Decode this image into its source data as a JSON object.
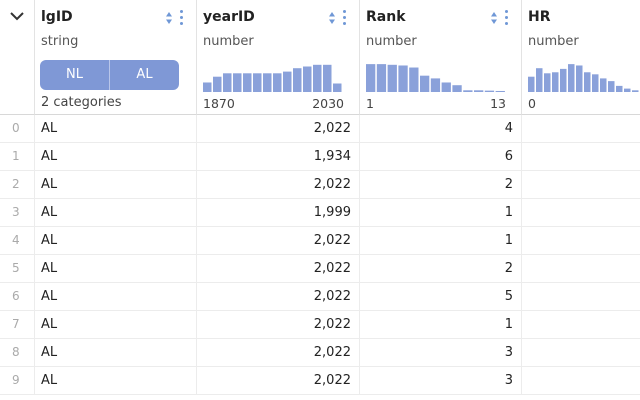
{
  "columns": [
    {
      "name": "lgID",
      "type": "string",
      "categories": [
        "NL",
        "AL"
      ],
      "categories_label": "2 categories"
    },
    {
      "name": "yearID",
      "type": "number",
      "range_min": "1870",
      "range_max": "2030",
      "histogram": [
        0.28,
        0.45,
        0.55,
        0.55,
        0.55,
        0.55,
        0.55,
        0.55,
        0.6,
        0.7,
        0.75,
        0.8,
        0.8,
        0.25
      ]
    },
    {
      "name": "Rank",
      "type": "number",
      "range_min": "1",
      "range_max": "13",
      "histogram": [
        0.82,
        0.82,
        0.8,
        0.78,
        0.72,
        0.48,
        0.4,
        0.28,
        0.2,
        0.05,
        0.05,
        0.04,
        0.03
      ]
    },
    {
      "name": "HR",
      "type": "number",
      "range_min": "0",
      "histogram": [
        0.45,
        0.7,
        0.55,
        0.58,
        0.68,
        0.82,
        0.78,
        0.58,
        0.52,
        0.4,
        0.32,
        0.18,
        0.1,
        0.05
      ]
    }
  ],
  "rows": [
    {
      "idx": "0",
      "lgID": "AL",
      "yearID": "2,022",
      "Rank": "4"
    },
    {
      "idx": "1",
      "lgID": "AL",
      "yearID": "1,934",
      "Rank": "6"
    },
    {
      "idx": "2",
      "lgID": "AL",
      "yearID": "2,022",
      "Rank": "2"
    },
    {
      "idx": "3",
      "lgID": "AL",
      "yearID": "1,999",
      "Rank": "1"
    },
    {
      "idx": "4",
      "lgID": "AL",
      "yearID": "2,022",
      "Rank": "1"
    },
    {
      "idx": "5",
      "lgID": "AL",
      "yearID": "2,022",
      "Rank": "2"
    },
    {
      "idx": "6",
      "lgID": "AL",
      "yearID": "2,022",
      "Rank": "5"
    },
    {
      "idx": "7",
      "lgID": "AL",
      "yearID": "2,022",
      "Rank": "1"
    },
    {
      "idx": "8",
      "lgID": "AL",
      "yearID": "2,022",
      "Rank": "3"
    },
    {
      "idx": "9",
      "lgID": "AL",
      "yearID": "2,022",
      "Rank": "3"
    }
  ],
  "colors": {
    "accent": "#7f98d6",
    "bar": "#8aa1da",
    "icon": "#6f97d6"
  }
}
